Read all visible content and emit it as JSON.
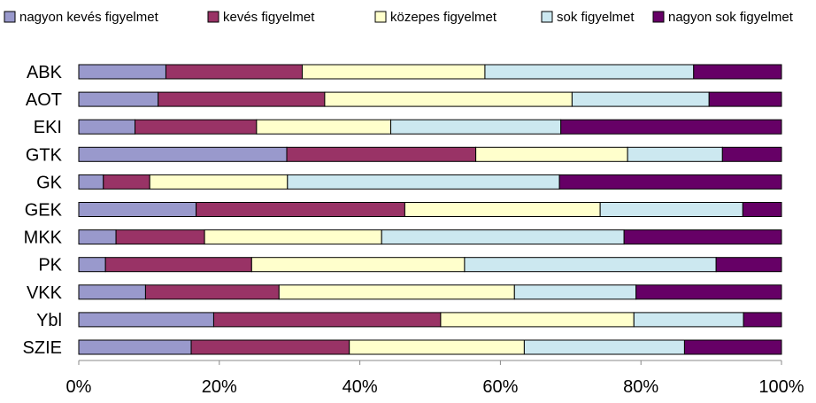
{
  "chart_data": {
    "type": "bar",
    "orientation": "horizontal",
    "stacked": "percent",
    "title": "",
    "xlabel": "",
    "ylabel": "",
    "xlim": [
      0,
      100
    ],
    "x_ticks": [
      "0%",
      "20%",
      "40%",
      "60%",
      "80%",
      "100%"
    ],
    "grid": false,
    "legend_position": "top",
    "categories": [
      "ABK",
      "AOT",
      "EKI",
      "GTK",
      "GK",
      "GEK",
      "MKK",
      "PK",
      "VKK",
      "Ybl",
      "SZIE"
    ],
    "series": [
      {
        "name": "nagyon kevés figyelmet",
        "color": "#9999cc",
        "values": [
          12.4,
          11.3,
          8.0,
          29.6,
          3.5,
          16.7,
          5.3,
          3.8,
          9.5,
          19.2,
          16.0
        ]
      },
      {
        "name": "kevés figyelmet",
        "color": "#993366",
        "values": [
          19.4,
          23.7,
          17.3,
          26.9,
          6.6,
          29.7,
          12.6,
          20.8,
          19.0,
          32.3,
          22.5
        ]
      },
      {
        "name": "közepes figyelmet",
        "color": "#ffffcc",
        "values": [
          26.0,
          35.2,
          19.1,
          21.6,
          19.6,
          27.8,
          25.2,
          30.3,
          33.5,
          27.5,
          24.9
        ]
      },
      {
        "name": "sok figyelmet",
        "color": "#cce8f0",
        "values": [
          29.7,
          19.5,
          24.2,
          13.5,
          38.7,
          20.3,
          34.5,
          35.8,
          17.3,
          15.6,
          22.8
        ]
      },
      {
        "name": "nagyon sok figyelmet",
        "color": "#660066",
        "values": [
          12.5,
          10.3,
          31.4,
          8.4,
          31.6,
          5.5,
          22.4,
          9.3,
          20.7,
          5.4,
          13.8
        ]
      }
    ]
  }
}
